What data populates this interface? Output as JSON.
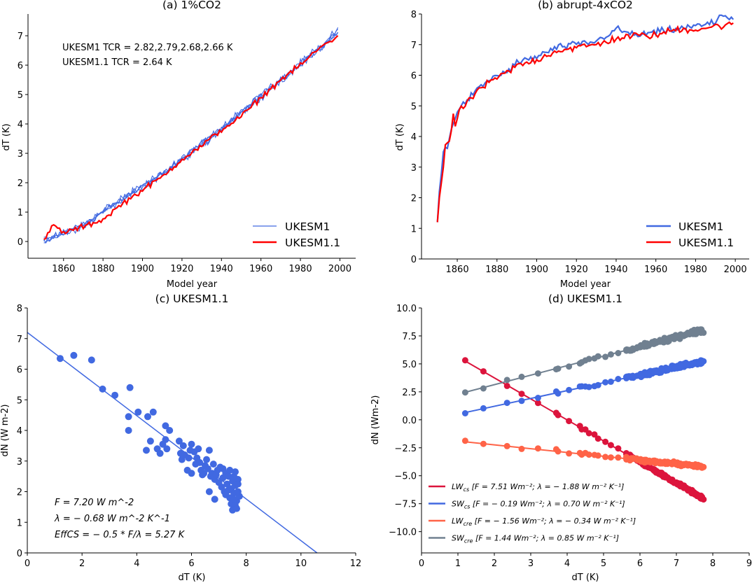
{
  "chart_data": [
    {
      "id": "a",
      "type": "line",
      "title": "(a) 1%CO2",
      "xlabel": "Model year",
      "ylabel": "dT (K)",
      "xlim": [
        1842,
        2008
      ],
      "ylim": [
        -0.57,
        7.74
      ],
      "xticks": [
        1860,
        1880,
        1900,
        1920,
        1940,
        1960,
        1980,
        2000
      ],
      "yticks": [
        0,
        1,
        2,
        3,
        4,
        5,
        6,
        7
      ],
      "annotations": [
        "UKESM1 TCR = 2.82,2.79,2.68,2.66 K",
        "UKESM1.1 TCR = 2.64 K"
      ],
      "legend": {
        "location": "lower-right",
        "entries": [
          {
            "label": "UKESM1",
            "color": "#4169e1",
            "style": "thin"
          },
          {
            "label": "UKESM1.1",
            "color": "#ff0000",
            "style": "thick"
          }
        ]
      },
      "series": [
        {
          "name": "UKESM1",
          "color": "#4169e1",
          "members": 4,
          "x_start": 1850,
          "x_end": 1999,
          "trend_points": [
            [
              1850,
              0.0
            ],
            [
              1870,
              0.55
            ],
            [
              1890,
              1.45
            ],
            [
              1910,
              2.3
            ],
            [
              1930,
              3.3
            ],
            [
              1950,
              4.4
            ],
            [
              1970,
              5.5
            ],
            [
              1990,
              6.6
            ],
            [
              1999,
              7.15
            ]
          ]
        },
        {
          "name": "UKESM1.1",
          "color": "#ff0000",
          "x_start": 1850,
          "x_end": 1999,
          "trend_points": [
            [
              1850,
              0.05
            ],
            [
              1855,
              0.55
            ],
            [
              1860,
              0.3
            ],
            [
              1870,
              0.5
            ],
            [
              1880,
              0.75
            ],
            [
              1890,
              1.3
            ],
            [
              1900,
              1.75
            ],
            [
              1910,
              2.2
            ],
            [
              1920,
              2.8
            ],
            [
              1930,
              3.25
            ],
            [
              1940,
              3.8
            ],
            [
              1950,
              4.25
            ],
            [
              1960,
              4.9
            ],
            [
              1970,
              5.5
            ],
            [
              1980,
              6.0
            ],
            [
              1990,
              6.6
            ],
            [
              1999,
              7.0
            ]
          ]
        }
      ]
    },
    {
      "id": "b",
      "type": "line",
      "title": "(b) abrupt-4xCO2",
      "xlabel": "Model year",
      "ylabel": "dT (K)",
      "xlim": [
        1842,
        2007
      ],
      "ylim": [
        0,
        8
      ],
      "xticks": [
        1860,
        1880,
        1900,
        1920,
        1940,
        1960,
        1980,
        2000
      ],
      "yticks": [
        0,
        1,
        2,
        3,
        4,
        5,
        6,
        7,
        8
      ],
      "legend": {
        "location": "lower-right",
        "entries": [
          {
            "label": "UKESM1",
            "color": "#4169e1"
          },
          {
            "label": "UKESM1.1",
            "color": "#ff0000"
          }
        ]
      },
      "series": [
        {
          "name": "UKESM1",
          "color": "#4169e1",
          "trend_points": [
            [
              1850,
              1.2
            ],
            [
              1851,
              2.2
            ],
            [
              1852,
              2.8
            ],
            [
              1853,
              3.5
            ],
            [
              1855,
              3.6
            ],
            [
              1857,
              4.3
            ],
            [
              1860,
              4.8
            ],
            [
              1865,
              5.2
            ],
            [
              1870,
              5.5
            ],
            [
              1875,
              5.8
            ],
            [
              1880,
              6.0
            ],
            [
              1885,
              6.1
            ],
            [
              1890,
              6.4
            ],
            [
              1900,
              6.6
            ],
            [
              1910,
              6.9
            ],
            [
              1920,
              7.0
            ],
            [
              1930,
              7.1
            ],
            [
              1940,
              7.5
            ],
            [
              1945,
              7.4
            ],
            [
              1950,
              7.3
            ],
            [
              1960,
              7.4
            ],
            [
              1970,
              7.5
            ],
            [
              1980,
              7.6
            ],
            [
              1990,
              7.7
            ],
            [
              1992,
              8.0
            ],
            [
              1999,
              7.85
            ]
          ]
        },
        {
          "name": "UKESM1.1",
          "color": "#ff0000",
          "trend_points": [
            [
              1850,
              1.2
            ],
            [
              1851,
              2.0
            ],
            [
              1853,
              3.0
            ],
            [
              1854,
              3.75
            ],
            [
              1856,
              3.8
            ],
            [
              1858,
              4.6
            ],
            [
              1859,
              4.4
            ],
            [
              1862,
              4.95
            ],
            [
              1865,
              5.05
            ],
            [
              1870,
              5.5
            ],
            [
              1875,
              5.7
            ],
            [
              1880,
              5.9
            ],
            [
              1885,
              6.1
            ],
            [
              1890,
              6.3
            ],
            [
              1900,
              6.5
            ],
            [
              1910,
              6.8
            ],
            [
              1920,
              6.9
            ],
            [
              1930,
              7.0
            ],
            [
              1940,
              7.2
            ],
            [
              1950,
              7.3
            ],
            [
              1960,
              7.3
            ],
            [
              1970,
              7.5
            ],
            [
              1980,
              7.5
            ],
            [
              1990,
              7.6
            ],
            [
              1999,
              7.65
            ]
          ]
        }
      ]
    },
    {
      "id": "c",
      "type": "scatter",
      "title": "(c) UKESM1.1",
      "xlabel": "dT (K)",
      "ylabel": "dN (W m-2)",
      "xlim": [
        0,
        12
      ],
      "ylim": [
        0,
        8
      ],
      "xticks": [
        0,
        2,
        4,
        6,
        8,
        10,
        12
      ],
      "yticks": [
        0,
        1,
        2,
        3,
        4,
        5,
        6,
        7,
        8
      ],
      "fit_line": {
        "intercept": 7.2,
        "slope": -0.68,
        "color": "#4169e1"
      },
      "annotations": [
        "F = 7.20 W m^-2",
        "λ = − 0.68 W m^-2 K^-1",
        "EffCS = − 0.5 * F/λ = 5.27 K"
      ],
      "points_color": "#4169e1",
      "points": [
        [
          1.2,
          6.35
        ],
        [
          1.7,
          6.45
        ],
        [
          2.35,
          6.3
        ],
        [
          2.75,
          5.35
        ],
        [
          3.2,
          5.15
        ],
        [
          3.75,
          5.4
        ],
        [
          3.7,
          4.45
        ],
        [
          4.05,
          4.6
        ],
        [
          4.4,
          4.45
        ],
        [
          4.6,
          4.6
        ],
        [
          4.35,
          3.35
        ],
        [
          4.5,
          3.65
        ],
        [
          3.7,
          4.0
        ],
        [
          4.75,
          3.4
        ],
        [
          4.85,
          3.25
        ],
        [
          4.95,
          3.55
        ],
        [
          5.05,
          4.15
        ],
        [
          5.2,
          4.0
        ],
        [
          5.05,
          3.7
        ],
        [
          5.1,
          3.4
        ],
        [
          5.55,
          3.65
        ],
        [
          5.6,
          3.25
        ],
        [
          5.7,
          3.5
        ],
        [
          5.65,
          3.05
        ],
        [
          5.75,
          3.2
        ],
        [
          5.9,
          3.1
        ],
        [
          5.95,
          3.35
        ],
        [
          6.0,
          3.55
        ],
        [
          6.1,
          3.3
        ],
        [
          6.15,
          2.9
        ],
        [
          6.2,
          3.1
        ],
        [
          6.25,
          3.4
        ],
        [
          6.3,
          2.95
        ],
        [
          6.35,
          2.7
        ],
        [
          6.45,
          2.6
        ],
        [
          6.5,
          2.85
        ],
        [
          6.55,
          3.05
        ],
        [
          6.6,
          2.75
        ],
        [
          6.65,
          3.35
        ],
        [
          6.7,
          2.5
        ],
        [
          6.75,
          2.6
        ],
        [
          6.8,
          2.9
        ],
        [
          6.85,
          2.4
        ],
        [
          6.9,
          2.55
        ],
        [
          6.95,
          2.7
        ],
        [
          7.0,
          2.3
        ],
        [
          7.05,
          2.8
        ],
        [
          7.1,
          2.15
        ],
        [
          7.15,
          2.45
        ],
        [
          7.2,
          2.0
        ],
        [
          7.25,
          2.6
        ],
        [
          7.3,
          2.25
        ],
        [
          7.35,
          2.5
        ],
        [
          7.4,
          1.8
        ],
        [
          7.45,
          2.1
        ],
        [
          7.5,
          2.35
        ],
        [
          7.55,
          1.95
        ],
        [
          7.6,
          2.2
        ],
        [
          7.65,
          1.7
        ],
        [
          7.7,
          2.4
        ],
        [
          7.75,
          1.85
        ],
        [
          7.4,
          2.7
        ],
        [
          7.55,
          2.5
        ],
        [
          7.35,
          2.05
        ],
        [
          7.45,
          1.6
        ],
        [
          7.5,
          1.4
        ],
        [
          7.6,
          1.55
        ],
        [
          7.7,
          2.0
        ],
        [
          7.65,
          1.45
        ],
        [
          6.65,
          2.0
        ],
        [
          6.85,
          1.75
        ],
        [
          6.4,
          2.55
        ],
        [
          6.0,
          2.6
        ],
        [
          5.85,
          2.7
        ],
        [
          7.15,
          2.75
        ],
        [
          7.25,
          1.9
        ],
        [
          7.6,
          2.65
        ],
        [
          7.7,
          2.25
        ],
        [
          7.55,
          1.75
        ]
      ]
    },
    {
      "id": "d",
      "type": "scatter",
      "title": "(d) UKESM1.1",
      "xlabel": "dT (K)",
      "ylabel": "dN (Wm-2)",
      "xlim": [
        0,
        9
      ],
      "ylim": [
        -11.9,
        10.0
      ],
      "xticks": [
        0,
        1,
        2,
        3,
        4,
        5,
        6,
        7,
        8,
        9
      ],
      "yticks": [
        -10.0,
        -7.5,
        -5.0,
        -2.5,
        0.0,
        2.5,
        5.0,
        7.5,
        10.0
      ],
      "ytick_labels": [
        "−10.0",
        "−7.5",
        "−5.0",
        "−2.5",
        "0.0",
        "2.5",
        "5.0",
        "7.5",
        "10.0"
      ],
      "legend": {
        "location": "lower-left",
        "entries": [
          {
            "name": "LW",
            "sub": "cs",
            "text": "[F = 7.51 Wm⁻²; λ = − 1.88 W m⁻² K⁻¹]",
            "color": "#dc143c"
          },
          {
            "name": "SW",
            "sub": "cs",
            "text": "[F = − 0.19 Wm⁻²; λ = 0.70 W m⁻² K⁻¹]",
            "color": "#4169e1"
          },
          {
            "name": "LW",
            "sub": "cre",
            "text": "[F = − 1.56 Wm⁻²; λ = − 0.34 W m⁻² K⁻¹]",
            "color": "#ff6347"
          },
          {
            "name": "SW",
            "sub": "cre",
            "text": "[F = 1.44 Wm⁻²; λ = 0.85 W m⁻² K⁻¹]",
            "color": "#708090"
          }
        ]
      },
      "series": [
        {
          "name": "LWcs",
          "color": "#dc143c",
          "F": 7.51,
          "lambda": -1.88,
          "noise": 0.12
        },
        {
          "name": "SWcs",
          "color": "#4169e1",
          "F": -0.19,
          "lambda": 0.7,
          "noise": 0.15
        },
        {
          "name": "LWcre",
          "color": "#ff6347",
          "F": -1.56,
          "lambda": -0.34,
          "noise": 0.12
        },
        {
          "name": "SWcre",
          "color": "#708090",
          "F": 1.44,
          "lambda": 0.85,
          "noise": 0.18
        }
      ],
      "x_samples_early": [
        1.2,
        1.7,
        2.35,
        2.75,
        3.2,
        3.7,
        3.75,
        4.05,
        4.4,
        4.6,
        4.35,
        4.5,
        4.75,
        4.85,
        5.05,
        5.2
      ]
    }
  ]
}
